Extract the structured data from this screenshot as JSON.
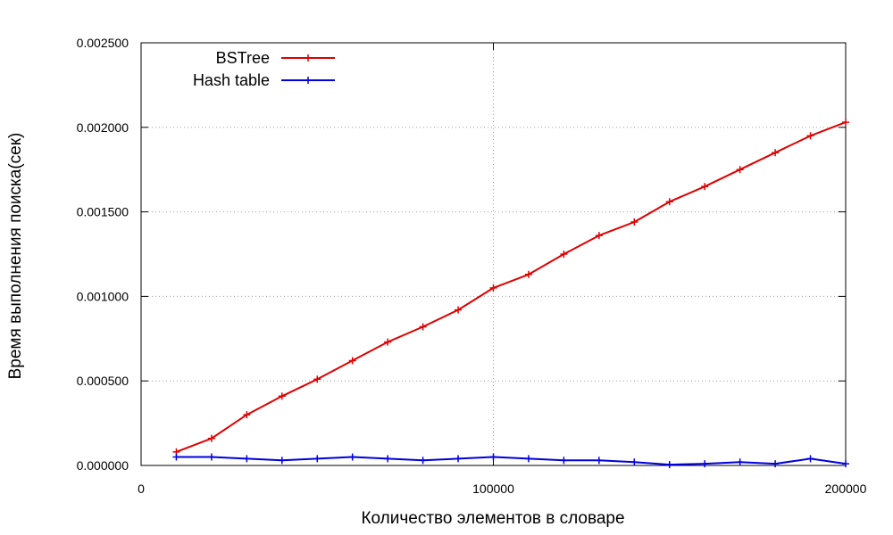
{
  "chart_data": {
    "type": "line",
    "title": "",
    "xlabel": "Количество элементов в словаре",
    "ylabel": "Время выполнения поиска(сек)",
    "xlim": [
      0,
      200000
    ],
    "ylim": [
      0,
      0.0025
    ],
    "x_ticks": [
      0,
      100000,
      200000
    ],
    "x_tick_labels": [
      "0",
      "100000",
      "200000"
    ],
    "y_ticks": [
      0,
      0.0005,
      0.001,
      0.0015,
      0.002,
      0.0025
    ],
    "y_tick_labels": [
      "0.000000",
      "0.000500",
      "0.001000",
      "0.001500",
      "0.002000",
      "0.002500"
    ],
    "grid": true,
    "legend_position": "top-left",
    "x": [
      10000,
      20000,
      30000,
      40000,
      50000,
      60000,
      70000,
      80000,
      90000,
      100000,
      110000,
      120000,
      130000,
      140000,
      150000,
      160000,
      170000,
      180000,
      190000,
      200000
    ],
    "series": [
      {
        "name": "BSTree",
        "color": "#e00000",
        "values": [
          8e-05,
          0.00016,
          0.0003,
          0.00041,
          0.00051,
          0.00062,
          0.00073,
          0.00082,
          0.00092,
          0.00105,
          0.00113,
          0.00125,
          0.00136,
          0.00144,
          0.00156,
          0.00165,
          0.00175,
          0.00185,
          0.00195,
          0.00203
        ]
      },
      {
        "name": "Hash table",
        "color": "#0000e0",
        "values": [
          5e-05,
          5e-05,
          4e-05,
          3e-05,
          4e-05,
          5e-05,
          4e-05,
          3e-05,
          4e-05,
          5e-05,
          4e-05,
          3e-05,
          3e-05,
          2e-05,
          5e-06,
          1e-05,
          2e-05,
          1e-05,
          4e-05,
          1e-05
        ]
      }
    ]
  }
}
